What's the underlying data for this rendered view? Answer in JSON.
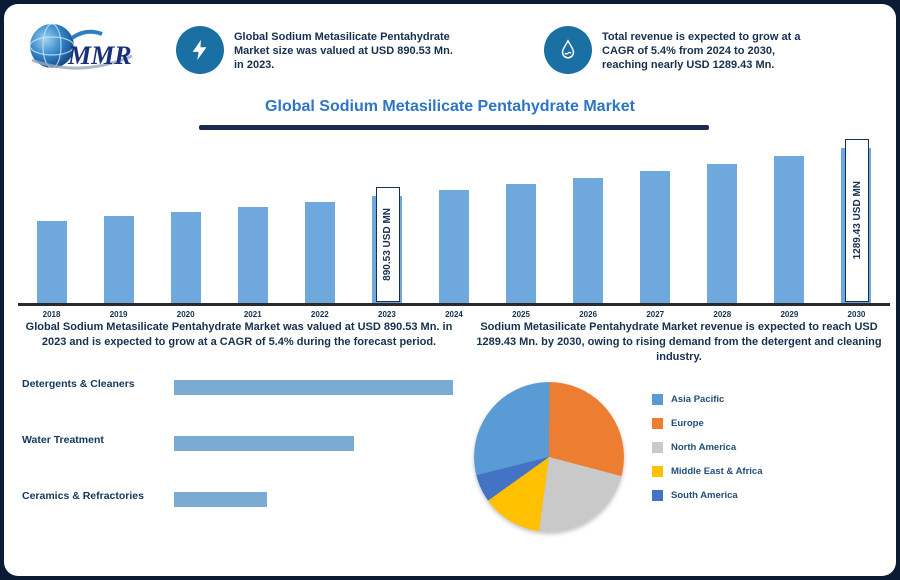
{
  "brand": {
    "name": "MMR"
  },
  "header": {
    "left": {
      "icon": "lightning-icon",
      "lines": [
        "Global Sodium Metasilicate Pentahydrate",
        "Market size was valued at USD 890.53 Mn.",
        "in 2023."
      ]
    },
    "right": {
      "icon": "water-drop-icon",
      "lines": [
        "Total revenue is expected to grow at a",
        "CAGR of 5.4% from 2024 to 2030,",
        "reaching nearly USD 1289.43 Mn."
      ]
    }
  },
  "title": "Global Sodium Metasilicate Pentahydrate Market",
  "captions": {
    "left": "Global Sodium Metasilicate Pentahydrate Market was valued at USD 890.53 Mn. in 2023 and is expected to grow at a CAGR of 5.4% during the forecast period.",
    "right": "Sodium Metasilicate Pentahydrate Market revenue is expected to reach USD 1289.43 Mn. by 2030, owing to rising demand from the detergent and cleaning industry."
  },
  "chart_data": [
    {
      "type": "bar",
      "title": "Global Sodium Metasilicate Pentahydrate Market Size (USD Mn)",
      "categories": [
        "2018",
        "2019",
        "2020",
        "2021",
        "2022",
        "2023",
        "2024",
        "2025",
        "2026",
        "2027",
        "2028",
        "2029",
        "2030"
      ],
      "values": [
        685.2,
        722.2,
        761.2,
        802.4,
        845.7,
        890.53,
        938.6,
        989.3,
        1042.7,
        1099.0,
        1158.3,
        1220.9,
        1289.43
      ],
      "ylabel": "USD Mn",
      "ylim": [
        0,
        1366
      ],
      "grid": false,
      "bar_color": "#6FA8DC",
      "annotations": [
        {
          "category": "2023",
          "label": "890.53 USD MN"
        },
        {
          "category": "2030",
          "label": "1289.43 USD MN"
        }
      ]
    },
    {
      "type": "bar",
      "orientation": "horizontal",
      "categories": [
        "Detergents & Cleaners",
        "Water Treatment",
        "Ceramics & Refractories"
      ],
      "values": [
        45,
        29,
        15
      ],
      "bar_color": "#79ABD3"
    },
    {
      "type": "pie",
      "labels": [
        "Asia Pacific",
        "Europe",
        "North America",
        "Middle East & Africa",
        "South America"
      ],
      "values": [
        29,
        29,
        23,
        13,
        6
      ],
      "colors": [
        "#5B9BD5",
        "#ED7D31",
        "#C9C9C9",
        "#FFC000",
        "#4472C4"
      ],
      "start_angle": 256,
      "legend_position": "right"
    }
  ],
  "colors": {
    "accent_blue": "#2E75C6",
    "navy_text": "#16304F",
    "icon_circle": "#1A6FA3",
    "bar_blue": "#6FA8DC",
    "frame_navy": "#0A1B33"
  }
}
